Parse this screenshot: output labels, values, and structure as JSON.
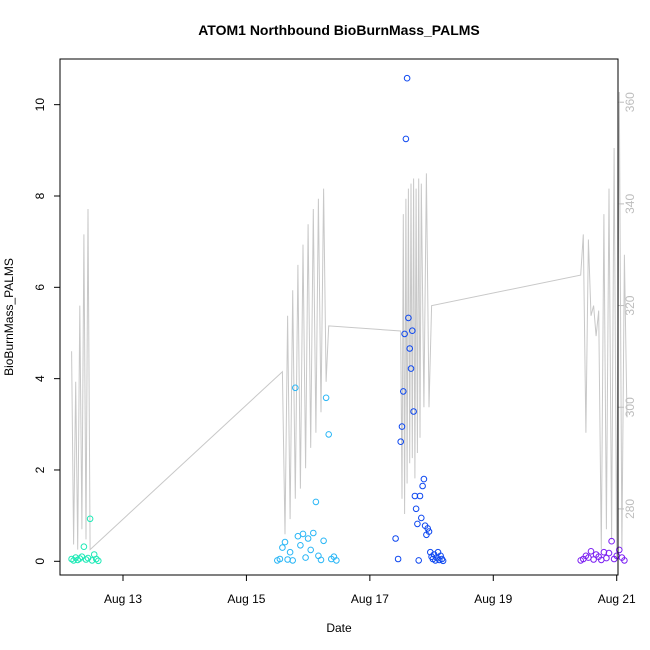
{
  "chart_data": {
    "type": "scatter",
    "title": "ATOM1 Northbound BioBurnMass_PALMS",
    "xlabel": "Date",
    "ylabel": "BioBurnMass_PALMS",
    "x_axis": {
      "type": "date",
      "range": [
        "2016-08-11T23:30",
        "2016-08-21T00:30"
      ],
      "ticks": [
        {
          "value": "2016-08-13",
          "label": "Aug 13"
        },
        {
          "value": "2016-08-15",
          "label": "Aug 15"
        },
        {
          "value": "2016-08-17",
          "label": "Aug 17"
        },
        {
          "value": "2016-08-19",
          "label": "Aug 19"
        },
        {
          "value": "2016-08-21",
          "label": "Aug 21"
        }
      ]
    },
    "y_axis": {
      "range": [
        -0.3,
        11.0
      ],
      "ticks": [
        {
          "value": 0,
          "label": "0"
        },
        {
          "value": 2,
          "label": "2"
        },
        {
          "value": 4,
          "label": "4"
        },
        {
          "value": 6,
          "label": "6"
        },
        {
          "value": 8,
          "label": "8"
        },
        {
          "value": 10,
          "label": "10"
        }
      ]
    },
    "y2_axis": {
      "range": [
        267.0,
        368.5
      ],
      "color": "#bdbdbd",
      "ticks": [
        {
          "value": 280,
          "label": "280"
        },
        {
          "value": 300,
          "label": "300"
        },
        {
          "value": 320,
          "label": "320"
        },
        {
          "value": 340,
          "label": "340"
        },
        {
          "value": 360,
          "label": "360"
        }
      ]
    },
    "grid": false,
    "legend": "none",
    "scatter_series": [
      {
        "color": "#1de9b6",
        "points": [
          [
            "2016-08-12T04:00",
            0.05
          ],
          [
            "2016-08-12T04:48",
            0.02
          ],
          [
            "2016-08-12T05:36",
            0.08
          ],
          [
            "2016-08-12T06:24",
            0.03
          ],
          [
            "2016-08-12T07:12",
            0.06
          ],
          [
            "2016-08-12T08:00",
            0.1
          ],
          [
            "2016-08-12T08:48",
            0.32
          ],
          [
            "2016-08-12T09:36",
            0.04
          ],
          [
            "2016-08-12T10:24",
            0.07
          ],
          [
            "2016-08-12T11:12",
            0.93
          ],
          [
            "2016-08-12T12:00",
            0.02
          ],
          [
            "2016-08-12T12:48",
            0.15
          ],
          [
            "2016-08-12T13:36",
            0.05
          ],
          [
            "2016-08-12T14:24",
            0.01
          ]
        ]
      },
      {
        "color": "#29b6f6",
        "points": [
          [
            "2016-08-15T12:00",
            0.02
          ],
          [
            "2016-08-15T13:00",
            0.05
          ],
          [
            "2016-08-15T14:00",
            0.3
          ],
          [
            "2016-08-15T15:00",
            0.42
          ],
          [
            "2016-08-15T16:00",
            0.04
          ],
          [
            "2016-08-15T17:00",
            0.2
          ],
          [
            "2016-08-15T18:00",
            0.02
          ],
          [
            "2016-08-15T19:00",
            3.8
          ],
          [
            "2016-08-15T20:00",
            0.55
          ],
          [
            "2016-08-15T21:00",
            0.35
          ],
          [
            "2016-08-15T22:00",
            0.6
          ],
          [
            "2016-08-15T23:00",
            0.08
          ],
          [
            "2016-08-16T00:00",
            0.5
          ],
          [
            "2016-08-16T01:00",
            0.25
          ],
          [
            "2016-08-16T02:00",
            0.62
          ],
          [
            "2016-08-16T03:00",
            1.3
          ],
          [
            "2016-08-16T04:00",
            0.12
          ],
          [
            "2016-08-16T05:00",
            0.03
          ],
          [
            "2016-08-16T06:00",
            0.45
          ],
          [
            "2016-08-16T07:00",
            3.58
          ],
          [
            "2016-08-16T08:00",
            2.78
          ],
          [
            "2016-08-16T09:00",
            0.05
          ],
          [
            "2016-08-16T10:00",
            0.1
          ],
          [
            "2016-08-16T11:00",
            0.02
          ]
        ]
      },
      {
        "color": "#0d47f0",
        "points": [
          [
            "2016-08-17T10:00",
            0.5
          ],
          [
            "2016-08-17T11:00",
            0.05
          ],
          [
            "2016-08-17T12:00",
            2.62
          ],
          [
            "2016-08-17T12:30",
            2.95
          ],
          [
            "2016-08-17T13:00",
            3.72
          ],
          [
            "2016-08-17T13:30",
            4.98
          ],
          [
            "2016-08-17T14:00",
            9.25
          ],
          [
            "2016-08-17T14:30",
            10.58
          ],
          [
            "2016-08-17T15:00",
            5.33
          ],
          [
            "2016-08-17T15:30",
            4.66
          ],
          [
            "2016-08-17T16:00",
            4.22
          ],
          [
            "2016-08-17T16:30",
            5.05
          ],
          [
            "2016-08-17T17:00",
            3.28
          ],
          [
            "2016-08-17T17:30",
            1.43
          ],
          [
            "2016-08-17T18:00",
            1.15
          ],
          [
            "2016-08-17T18:30",
            0.82
          ],
          [
            "2016-08-17T19:00",
            0.02
          ],
          [
            "2016-08-17T19:30",
            1.43
          ],
          [
            "2016-08-17T20:00",
            0.95
          ],
          [
            "2016-08-17T20:30",
            1.65
          ],
          [
            "2016-08-17T21:00",
            1.8
          ],
          [
            "2016-08-17T21:30",
            0.78
          ],
          [
            "2016-08-17T22:00",
            0.58
          ],
          [
            "2016-08-17T22:30",
            0.72
          ],
          [
            "2016-08-17T23:00",
            0.65
          ],
          [
            "2016-08-17T23:30",
            0.2
          ],
          [
            "2016-08-18T00:00",
            0.1
          ],
          [
            "2016-08-18T00:30",
            0.05
          ],
          [
            "2016-08-18T01:00",
            0.15
          ],
          [
            "2016-08-18T01:30",
            0.02
          ],
          [
            "2016-08-18T02:00",
            0.08
          ],
          [
            "2016-08-18T02:30",
            0.2
          ],
          [
            "2016-08-18T03:00",
            0.03
          ],
          [
            "2016-08-18T03:30",
            0.12
          ],
          [
            "2016-08-18T04:00",
            0.05
          ],
          [
            "2016-08-18T04:30",
            0.01
          ]
        ]
      },
      {
        "color": "#7b1ff2",
        "points": [
          [
            "2016-08-20T10:00",
            0.02
          ],
          [
            "2016-08-20T11:00",
            0.05
          ],
          [
            "2016-08-20T12:00",
            0.12
          ],
          [
            "2016-08-20T13:00",
            0.08
          ],
          [
            "2016-08-20T14:00",
            0.22
          ],
          [
            "2016-08-20T15:00",
            0.04
          ],
          [
            "2016-08-20T16:00",
            0.15
          ],
          [
            "2016-08-20T17:00",
            0.1
          ],
          [
            "2016-08-20T18:00",
            0.03
          ],
          [
            "2016-08-20T19:00",
            0.2
          ],
          [
            "2016-08-20T20:00",
            0.07
          ],
          [
            "2016-08-20T21:00",
            0.18
          ],
          [
            "2016-08-20T22:00",
            0.44
          ],
          [
            "2016-08-20T23:00",
            0.05
          ],
          [
            "2016-08-21T00:00",
            0.12
          ],
          [
            "2016-08-21T01:00",
            0.25
          ],
          [
            "2016-08-21T02:00",
            0.08
          ],
          [
            "2016-08-21T03:00",
            0.02
          ]
        ]
      }
    ],
    "line_series": {
      "axis": "right",
      "color": "#c8c8c8",
      "points": [
        [
          "2016-08-12T04:00",
          311
        ],
        [
          "2016-08-12T04:48",
          273
        ],
        [
          "2016-08-12T05:36",
          305
        ],
        [
          "2016-08-12T06:24",
          272
        ],
        [
          "2016-08-12T07:12",
          320
        ],
        [
          "2016-08-12T08:00",
          276
        ],
        [
          "2016-08-12T08:48",
          334
        ],
        [
          "2016-08-12T09:36",
          274
        ],
        [
          "2016-08-12T10:24",
          339
        ],
        [
          "2016-08-12T11:12",
          272
        ],
        [
          "2016-08-15T14:00",
          307
        ],
        [
          "2016-08-15T15:00",
          275
        ],
        [
          "2016-08-15T16:00",
          318
        ],
        [
          "2016-08-15T17:00",
          278
        ],
        [
          "2016-08-15T18:00",
          323
        ],
        [
          "2016-08-15T19:00",
          282
        ],
        [
          "2016-08-15T20:00",
          328
        ],
        [
          "2016-08-15T21:00",
          284
        ],
        [
          "2016-08-15T22:00",
          332
        ],
        [
          "2016-08-15T23:00",
          288
        ],
        [
          "2016-08-16T00:00",
          336
        ],
        [
          "2016-08-16T01:00",
          292
        ],
        [
          "2016-08-16T02:00",
          339
        ],
        [
          "2016-08-16T03:00",
          295
        ],
        [
          "2016-08-16T04:00",
          341
        ],
        [
          "2016-08-16T05:00",
          299
        ],
        [
          "2016-08-16T06:00",
          343
        ],
        [
          "2016-08-16T07:00",
          305
        ],
        [
          "2016-08-16T08:00",
          316
        ],
        [
          "2016-08-17T12:00",
          315
        ],
        [
          "2016-08-17T12:30",
          282
        ],
        [
          "2016-08-17T13:00",
          338
        ],
        [
          "2016-08-17T13:30",
          279
        ],
        [
          "2016-08-17T14:00",
          341
        ],
        [
          "2016-08-17T14:30",
          285
        ],
        [
          "2016-08-17T15:00",
          343
        ],
        [
          "2016-08-17T15:30",
          289
        ],
        [
          "2016-08-17T16:00",
          344
        ],
        [
          "2016-08-17T16:30",
          290
        ],
        [
          "2016-08-17T17:00",
          345
        ],
        [
          "2016-08-17T17:30",
          286
        ],
        [
          "2016-08-17T18:00",
          343
        ],
        [
          "2016-08-17T18:30",
          291
        ],
        [
          "2016-08-17T19:00",
          345
        ],
        [
          "2016-08-17T19:30",
          294
        ],
        [
          "2016-08-17T20:00",
          344
        ],
        [
          "2016-08-17T21:00",
          300
        ],
        [
          "2016-08-17T22:00",
          346
        ],
        [
          "2016-08-17T23:00",
          300
        ],
        [
          "2016-08-18T00:00",
          320
        ],
        [
          "2016-08-20T10:00",
          326
        ],
        [
          "2016-08-20T11:00",
          334
        ],
        [
          "2016-08-20T12:00",
          295
        ],
        [
          "2016-08-20T13:00",
          333
        ],
        [
          "2016-08-20T14:00",
          318
        ],
        [
          "2016-08-20T15:00",
          320
        ],
        [
          "2016-08-20T16:00",
          314
        ],
        [
          "2016-08-20T17:00",
          319
        ],
        [
          "2016-08-20T18:00",
          272
        ],
        [
          "2016-08-20T19:00",
          338
        ],
        [
          "2016-08-20T20:00",
          276
        ],
        [
          "2016-08-20T21:00",
          343
        ],
        [
          "2016-08-20T22:00",
          274
        ],
        [
          "2016-08-20T23:00",
          351
        ],
        [
          "2016-08-21T00:00",
          270
        ],
        [
          "2016-08-21T01:00",
          362
        ],
        [
          "2016-08-21T02:00",
          272
        ],
        [
          "2016-08-21T03:00",
          330
        ],
        [
          "2016-08-21T04:00",
          298
        ]
      ]
    }
  }
}
